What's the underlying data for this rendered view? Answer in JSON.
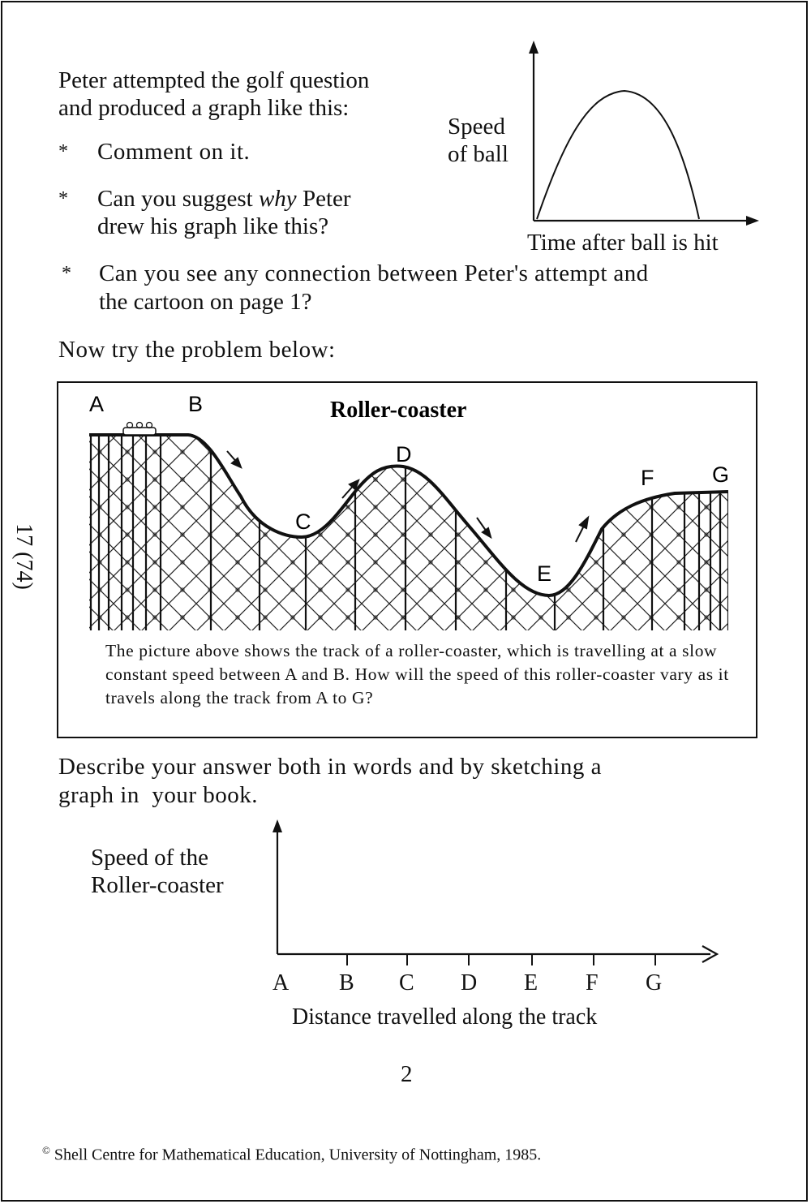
{
  "side_label": "17 (74)",
  "intro": {
    "line1": "Peter attempted the golf question",
    "line2": "and produced a graph like this:",
    "bullet_star": "*",
    "bullet1": "Comment on it.",
    "bullet2_pre": "Can you suggest ",
    "bullet2_em": "why",
    "bullet2_post": " Peter",
    "bullet2_line2": "drew his graph like this?",
    "bullet3_line1": "Can you see any connection between Peter's attempt and",
    "bullet3_line2": "the cartoon on page 1?",
    "now_try": "Now try the problem below:"
  },
  "golf_graph": {
    "ylabel_line1": "Speed",
    "ylabel_line2": "of ball",
    "xlabel": "Time after ball is hit"
  },
  "coaster": {
    "title": "Roller-coaster",
    "points": [
      "A",
      "B",
      "C",
      "D",
      "E",
      "F",
      "G"
    ],
    "caption": "The picture above shows the track of a roller-coaster, which is travelling at a slow constant speed between A and B. How will the speed of this roller-coaster vary as it travels along the track from A to G?"
  },
  "describe": {
    "line1": "Describe your answer both in words and by sketching a",
    "line2": "graph in  your book."
  },
  "answer_graph": {
    "ylabel_line1": "Speed of the",
    "ylabel_line2": "Roller-coaster",
    "ticks": [
      "A",
      "B",
      "C",
      "D",
      "E",
      "F",
      "G"
    ],
    "xlabel": "Distance travelled along the track"
  },
  "page_number": "2",
  "footer": "Shell Centre for Mathematical Education, University of Nottingham, 1985.",
  "footer_symbol": "©"
}
